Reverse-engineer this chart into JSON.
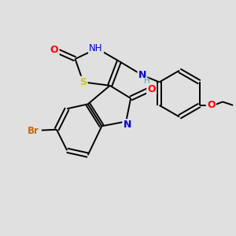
{
  "bg_color": "#e0e0e0",
  "bond_color": "#000000",
  "atom_colors": {
    "S": "#cccc00",
    "N": "#0000cc",
    "O": "#ff0000",
    "Br": "#cc6600",
    "C": "#000000",
    "H_teal": "#44aaaa"
  },
  "font_size": 8.5,
  "lw": 1.4,
  "lw2": 2.2
}
